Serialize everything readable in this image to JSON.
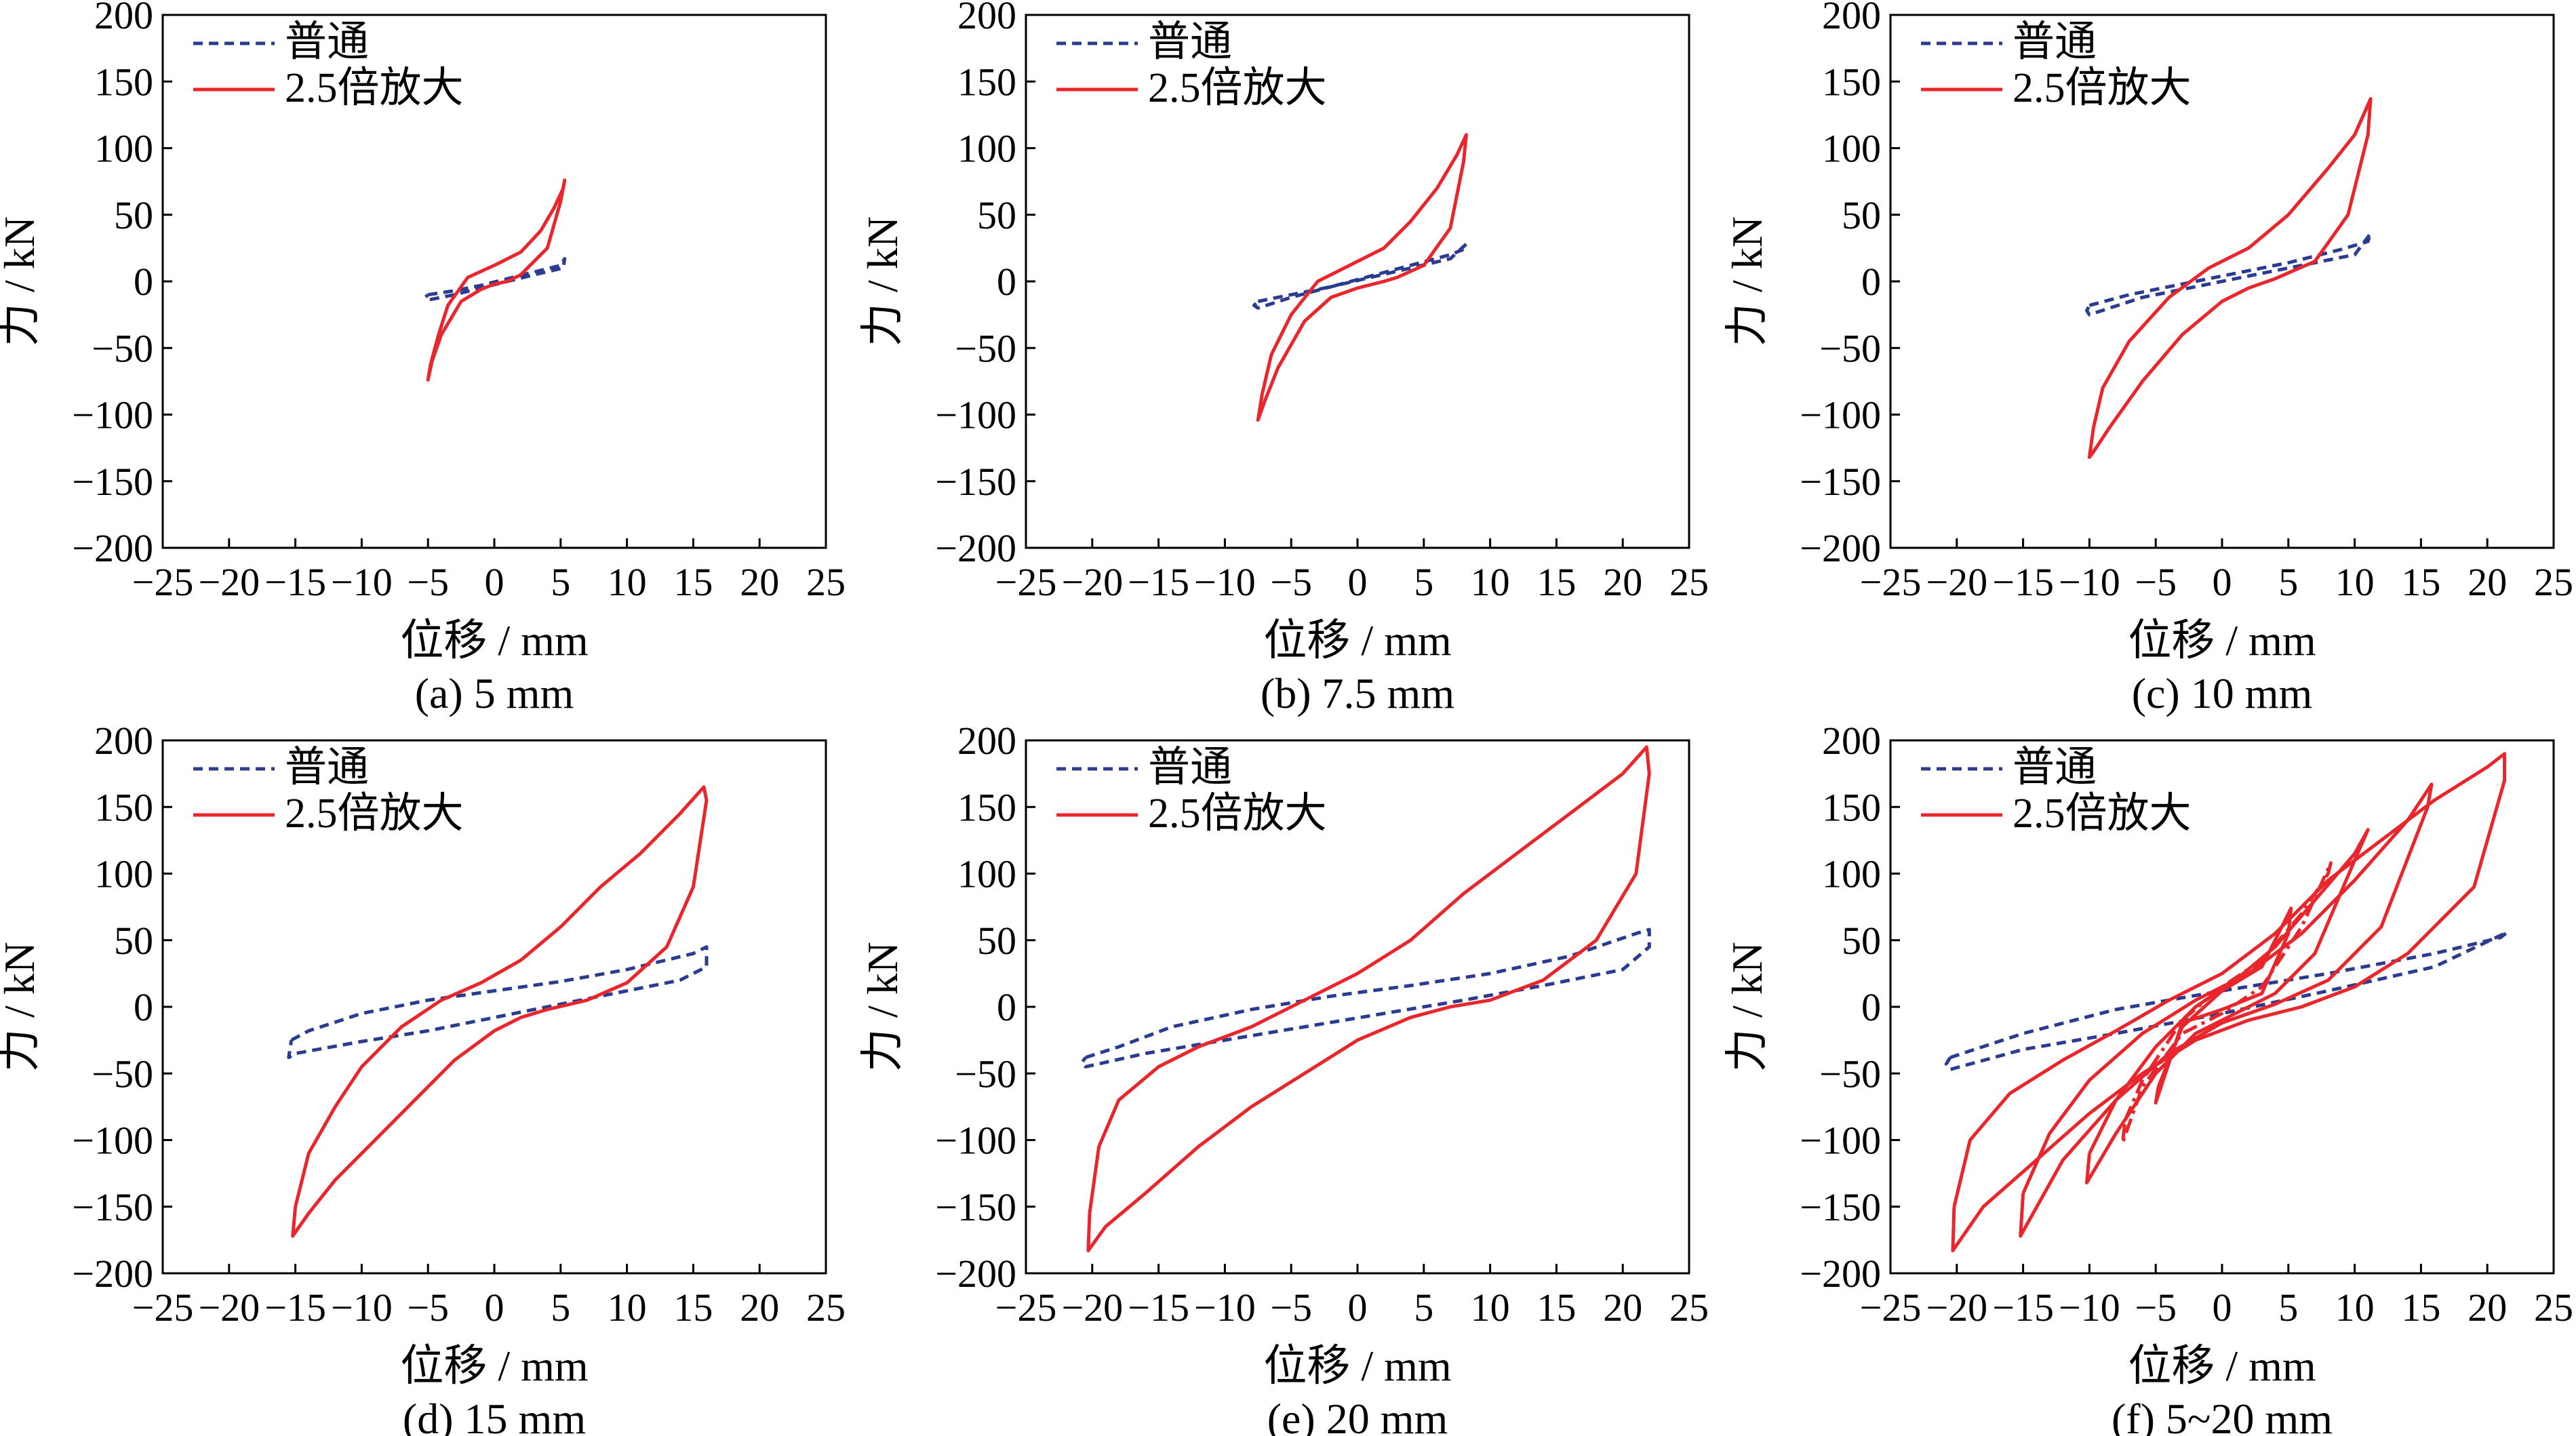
{
  "colors": {
    "normal": "#2b3b8f",
    "amplified": "#e8262b",
    "axis": "#000000",
    "background": "#ffffff"
  },
  "legend": {
    "normal": "普通",
    "amplified": "2.5倍放大"
  },
  "chart_data": [
    {
      "type": "line",
      "caption": "(a) 5 mm",
      "xlabel": "位移 / mm",
      "ylabel": "力 / kN",
      "xlim": [
        -25,
        25
      ],
      "ylim": [
        -200,
        200
      ],
      "xticks": [
        "−25",
        "−20",
        "−15",
        "−10",
        "−5",
        "0",
        "5",
        "10",
        "15",
        "20",
        "25"
      ],
      "yticks": [
        "200",
        "150",
        "100",
        "50",
        "0",
        "−50",
        "−100",
        "−150",
        "−200"
      ],
      "legend_position": "top-left",
      "series": [
        {
          "name": "普通",
          "style": "dashed",
          "x": [
            -5,
            -3,
            -1,
            1,
            3,
            5,
            5.3,
            5.2,
            3,
            1,
            -1,
            -3,
            -5,
            -5.2,
            -5
          ],
          "y": [
            -10,
            -7,
            -3,
            2,
            7,
            12,
            17,
            10,
            5,
            0,
            -5,
            -10,
            -14,
            -12,
            -10
          ]
        },
        {
          "name": "2.5倍放大",
          "style": "solid",
          "x": [
            -4.8,
            -4.2,
            -3.5,
            -2,
            0,
            2,
            3.5,
            4.5,
            5.2,
            5.3,
            5,
            4,
            2,
            1,
            0,
            -1,
            -2.5,
            -4,
            -4.7,
            -5,
            -4.8
          ],
          "y": [
            -62,
            -40,
            -18,
            3,
            12,
            22,
            38,
            55,
            70,
            76,
            60,
            25,
            5,
            0,
            -2,
            -6,
            -15,
            -40,
            -60,
            -74,
            -62
          ]
        }
      ]
    },
    {
      "type": "line",
      "caption": "(b) 7.5 mm",
      "xlabel": "位移 / mm",
      "ylabel": "力 / kN",
      "xlim": [
        -25,
        25
      ],
      "ylim": [
        -200,
        200
      ],
      "xticks": [
        "−25",
        "−20",
        "−15",
        "−10",
        "−5",
        "0",
        "5",
        "10",
        "15",
        "20",
        "25"
      ],
      "yticks": [
        "200",
        "150",
        "100",
        "50",
        "0",
        "−50",
        "−100",
        "−150",
        "−200"
      ],
      "legend_position": "top-left",
      "series": [
        {
          "name": "普通",
          "style": "dashed",
          "x": [
            -7.5,
            -5,
            -2,
            1,
            4,
            7,
            8,
            8.2,
            7,
            4,
            1,
            -2,
            -5,
            -7.5,
            -7.8,
            -7.5
          ],
          "y": [
            -15,
            -10,
            -4,
            4,
            12,
            20,
            24,
            28,
            17,
            10,
            3,
            -4,
            -12,
            -20,
            -18,
            -15
          ]
        },
        {
          "name": "2.5倍放大",
          "style": "solid",
          "x": [
            -7.2,
            -6.5,
            -5,
            -3,
            0,
            2,
            4,
            6,
            7.5,
            8.2,
            8,
            7,
            5,
            3,
            2,
            0,
            -2,
            -4,
            -6,
            -7,
            -7.5,
            -7.2
          ],
          "y": [
            -85,
            -55,
            -25,
            0,
            15,
            25,
            45,
            70,
            95,
            110,
            90,
            40,
            12,
            3,
            0,
            -5,
            -12,
            -30,
            -65,
            -90,
            -104,
            -85
          ]
        }
      ]
    },
    {
      "type": "line",
      "caption": "(c) 10 mm",
      "xlabel": "位移 / mm",
      "ylabel": "力 / kN",
      "xlim": [
        -25,
        25
      ],
      "ylim": [
        -200,
        200
      ],
      "xticks": [
        "−25",
        "−20",
        "−15",
        "−10",
        "−5",
        "0",
        "5",
        "10",
        "15",
        "20",
        "25"
      ],
      "yticks": [
        "200",
        "150",
        "100",
        "50",
        "0",
        "−50",
        "−100",
        "−150",
        "−200"
      ],
      "legend_position": "top-left",
      "series": [
        {
          "name": "普通",
          "style": "dashed",
          "x": [
            -10,
            -7,
            -3,
            1,
            5,
            9,
            11,
            11.2,
            10,
            6,
            2,
            -2,
            -6,
            -10,
            -10.2,
            -10
          ],
          "y": [
            -18,
            -10,
            -2,
            6,
            14,
            24,
            30,
            36,
            20,
            12,
            4,
            -4,
            -12,
            -25,
            -22,
            -18
          ]
        },
        {
          "name": "2.5倍放大",
          "style": "solid",
          "x": [
            -9.7,
            -9,
            -7,
            -4,
            -1,
            2,
            5,
            8,
            10,
            11.2,
            11,
            9.5,
            7,
            4,
            2,
            0,
            -3,
            -6,
            -8.5,
            -9.7,
            -10,
            -9.7
          ],
          "y": [
            -110,
            -80,
            -45,
            -12,
            10,
            25,
            50,
            85,
            110,
            137,
            110,
            50,
            15,
            2,
            -5,
            -15,
            -40,
            -75,
            -110,
            -128,
            -132,
            -110
          ]
        }
      ]
    },
    {
      "type": "line",
      "caption": "(d) 15 mm",
      "xlabel": "位移 / mm",
      "ylabel": "力 / kN",
      "xlim": [
        -25,
        25
      ],
      "ylim": [
        -200,
        200
      ],
      "xticks": [
        "−25",
        "−20",
        "−15",
        "−10",
        "−5",
        "0",
        "5",
        "10",
        "15",
        "20",
        "25"
      ],
      "yticks": [
        "200",
        "150",
        "100",
        "50",
        "0",
        "−50",
        "−100",
        "−150",
        "−200"
      ],
      "legend_position": "top-left",
      "series": [
        {
          "name": "普通",
          "style": "dashed",
          "x": [
            -15.3,
            -14,
            -10,
            -5,
            0,
            5,
            10,
            15,
            16,
            16,
            14,
            10,
            5,
            0,
            -5,
            -10,
            -15,
            -15.5,
            -15.3
          ],
          "y": [
            -25,
            -18,
            -5,
            5,
            12,
            19,
            28,
            40,
            45,
            30,
            20,
            12,
            2,
            -8,
            -18,
            -26,
            -35,
            -38,
            -25
          ]
        },
        {
          "name": "2.5倍放大",
          "style": "solid",
          "x": [
            -15,
            -14,
            -12,
            -10,
            -7,
            -4,
            -1,
            2,
            5,
            8,
            11,
            14,
            15.8,
            16,
            15,
            13,
            10,
            7,
            4,
            2,
            0,
            -3,
            -6,
            -9,
            -12,
            -14,
            -15.2,
            -15
          ],
          "y": [
            -150,
            -110,
            -75,
            -45,
            -15,
            5,
            18,
            35,
            60,
            90,
            115,
            145,
            165,
            155,
            90,
            45,
            18,
            5,
            -2,
            -8,
            -18,
            -40,
            -70,
            -100,
            -130,
            -155,
            -172,
            -150
          ]
        }
      ]
    },
    {
      "type": "line",
      "caption": "(e) 20 mm",
      "xlabel": "位移 / mm",
      "ylabel": "力 / kN",
      "xlim": [
        -25,
        25
      ],
      "ylim": [
        -200,
        200
      ],
      "xticks": [
        "−25",
        "−20",
        "−15",
        "−10",
        "−5",
        "0",
        "5",
        "10",
        "15",
        "20",
        "25"
      ],
      "yticks": [
        "200",
        "150",
        "100",
        "50",
        "0",
        "−50",
        "−100",
        "−150",
        "−200"
      ],
      "legend_position": "top-left",
      "series": [
        {
          "name": "普通",
          "style": "dashed",
          "x": [
            -20.5,
            -18,
            -14,
            -8,
            -2,
            4,
            10,
            16,
            21,
            22,
            22,
            20,
            14,
            8,
            2,
            -4,
            -10,
            -16,
            -20.5,
            -20.8,
            -20.5
          ],
          "y": [
            -38,
            -30,
            -15,
            -2,
            8,
            16,
            25,
            38,
            55,
            58,
            45,
            28,
            16,
            5,
            -5,
            -15,
            -25,
            -35,
            -45,
            -42,
            -38
          ]
        },
        {
          "name": "2.5倍放大",
          "style": "solid",
          "x": [
            -20.2,
            -19.5,
            -18,
            -15,
            -12,
            -8,
            -4,
            0,
            4,
            8,
            12,
            16,
            20,
            21.8,
            22,
            21,
            18,
            14,
            10,
            7,
            4,
            0,
            -4,
            -8,
            -12,
            -16,
            -19,
            -20.3,
            -20.2
          ],
          "y": [
            -155,
            -105,
            -70,
            -45,
            -30,
            -15,
            5,
            25,
            50,
            85,
            115,
            145,
            175,
            195,
            175,
            100,
            50,
            20,
            5,
            0,
            -8,
            -25,
            -50,
            -75,
            -105,
            -140,
            -165,
            -183,
            -155
          ]
        }
      ]
    },
    {
      "type": "line",
      "caption": "(f) 5~20 mm",
      "xlabel": "位移 / mm",
      "ylabel": "力 / kN",
      "xlim": [
        -25,
        25
      ],
      "ylim": [
        -200,
        200
      ],
      "xticks": [
        "−25",
        "−20",
        "−15",
        "−10",
        "−5",
        "0",
        "5",
        "10",
        "15",
        "20",
        "25"
      ],
      "yticks": [
        "200",
        "150",
        "100",
        "50",
        "0",
        "−50",
        "−100",
        "−150",
        "−200"
      ],
      "legend_position": "top-left",
      "series": [
        {
          "name": "普通",
          "style": "dashed",
          "x": [
            -20.5,
            -15,
            -8,
            0,
            8,
            16,
            21,
            21.5,
            16,
            8,
            0,
            -8,
            -15,
            -20.5,
            -20.8,
            -20.5
          ],
          "y": [
            -38,
            -20,
            -2,
            12,
            25,
            40,
            52,
            56,
            30,
            12,
            -5,
            -20,
            -32,
            -47,
            -43,
            -38
          ]
        },
        {
          "name": "2.5倍放大",
          "style": "solid",
          "x": [
            -20.2,
            -19,
            -16,
            -12,
            -8,
            -4,
            0,
            4,
            8,
            12,
            16,
            20,
            21.3,
            21.3,
            19,
            14,
            10,
            6,
            2,
            -2,
            -6,
            -10,
            -14,
            -18,
            -20.3,
            -20.2
          ],
          "y": [
            -150,
            -100,
            -65,
            -40,
            -18,
            5,
            25,
            55,
            95,
            125,
            155,
            180,
            190,
            170,
            90,
            40,
            15,
            0,
            -10,
            -25,
            -50,
            -80,
            -115,
            -150,
            -183,
            -150
          ]
        },
        {
          "name": "",
          "style": "solid",
          "x": [
            -15,
            -13,
            -10,
            -6,
            -2,
            2,
            6,
            10,
            14,
            15.8,
            15.5,
            12,
            8,
            4,
            0,
            -4,
            -8,
            -12,
            -15.2,
            -15
          ],
          "y": [
            -140,
            -95,
            -55,
            -20,
            5,
            25,
            55,
            95,
            140,
            167,
            150,
            60,
            20,
            2,
            -12,
            -35,
            -70,
            -115,
            -172,
            -140
          ]
        },
        {
          "name": "",
          "style": "solid",
          "x": [
            -10,
            -8,
            -5,
            -2,
            1,
            4,
            7,
            10,
            11,
            10,
            7,
            4,
            1,
            -2,
            -5,
            -8,
            -10.2,
            -10
          ],
          "y": [
            -110,
            -70,
            -30,
            0,
            20,
            45,
            80,
            115,
            133,
            110,
            40,
            10,
            -5,
            -20,
            -50,
            -95,
            -132,
            -110
          ]
        },
        {
          "name": "",
          "style": "dashdot",
          "x": [
            -7.3,
            -6,
            -3,
            0,
            3,
            6,
            8,
            8.2,
            6,
            3,
            0,
            -3,
            -6,
            -7.5,
            -7.3
          ],
          "y": [
            -85,
            -55,
            -10,
            15,
            35,
            70,
            100,
            108,
            60,
            15,
            -5,
            -20,
            -60,
            -102,
            -85
          ]
        },
        {
          "name": "",
          "style": "solid",
          "x": [
            -4.8,
            -3,
            0,
            3,
            5.2,
            5,
            3,
            0,
            -3,
            -5,
            -4.8
          ],
          "y": [
            -60,
            -15,
            12,
            30,
            74,
            55,
            10,
            -2,
            -12,
            -72,
            -60
          ]
        }
      ]
    }
  ]
}
